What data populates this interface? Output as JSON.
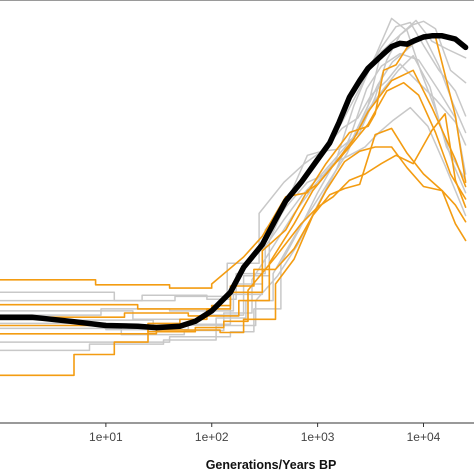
{
  "chart_data": {
    "type": "line",
    "title": "",
    "xlabel": "Generations/Years BP",
    "ylabel": "",
    "x_scale": "log",
    "xlim": [
      1,
      30000
    ],
    "ylim": [
      0,
      100
    ],
    "x_ticks": [
      {
        "value": 10,
        "label": "1e+01"
      },
      {
        "value": 100,
        "label": "1e+02"
      },
      {
        "value": 1000,
        "label": "1e+03"
      },
      {
        "value": 10000,
        "label": "1e+04"
      }
    ],
    "grid": false,
    "legend": "none",
    "colors": {
      "background": "#ffffff",
      "mean": "#000000",
      "highlight": "#f39c12",
      "replicate": "#c8c8c8",
      "axis": "#333333"
    },
    "series": [
      {
        "group": "mean",
        "x": [
          1,
          2,
          5,
          10,
          20,
          30,
          50,
          70,
          100,
          150,
          200,
          300,
          400,
          500,
          700,
          1000,
          1300,
          1600,
          2000,
          2500,
          3000,
          4000,
          5000,
          6000,
          7000,
          8000,
          10000,
          12000,
          15000,
          20000,
          25000
        ],
        "y": [
          25.5,
          25.5,
          24.4,
          23.5,
          23.3,
          23.0,
          23.3,
          24.5,
          27.0,
          31.5,
          37.5,
          43.0,
          49.0,
          53.5,
          58.0,
          63.5,
          67.5,
          72.5,
          78.5,
          82.5,
          85.5,
          88.5,
          90.7,
          91.5,
          91.3,
          92.0,
          93.0,
          93.3,
          93.3,
          92.5,
          90.5
        ]
      },
      {
        "group": "highlight",
        "x": [
          1,
          8,
          8,
          40,
          40,
          100,
          100,
          200,
          300,
          500,
          800,
          1200,
          2000,
          3000,
          3500,
          4200,
          5500,
          7000,
          10000,
          13000,
          20000,
          25000
        ],
        "y": [
          34.5,
          34.5,
          33.3,
          33.3,
          32.5,
          32.5,
          33.5,
          40.0,
          45.0,
          54.5,
          55.5,
          62.5,
          70.0,
          71.5,
          74.5,
          85.0,
          86.3,
          90.5,
          93.3,
          93.0,
          74.0,
          58.0
        ]
      },
      {
        "group": "highlight",
        "x": [
          1,
          20,
          20,
          100,
          100,
          150,
          150,
          300,
          300,
          500,
          800,
          1000,
          1500,
          2200,
          3000,
          5000,
          8000,
          12000,
          20000,
          25000
        ],
        "y": [
          28.5,
          28.5,
          27.5,
          27.5,
          28.3,
          28.3,
          31.5,
          31.5,
          41.5,
          46.5,
          56.0,
          57.5,
          63.0,
          68.5,
          75.0,
          82.5,
          85.0,
          76.0,
          63.5,
          57.0
        ]
      },
      {
        "group": "highlight",
        "x": [
          1,
          30,
          30,
          120,
          120,
          200,
          200,
          400,
          400,
          600,
          900,
          1200,
          1800,
          2500,
          3500,
          5000,
          7000,
          10000,
          15000,
          20000,
          25000
        ],
        "y": [
          21.5,
          21.5,
          22.4,
          22.4,
          21.8,
          21.8,
          25.0,
          25.0,
          33.5,
          39.5,
          50.0,
          56.0,
          63.0,
          65.5,
          66.5,
          66.5,
          61.5,
          57.0,
          56.0,
          52.5,
          48.5
        ]
      },
      {
        "group": "highlight",
        "x": [
          1,
          5,
          5,
          12,
          12,
          25,
          25,
          50,
          50,
          90,
          90,
          150,
          150,
          250,
          250,
          400,
          600,
          900,
          1300,
          1800,
          2500,
          3500,
          5000,
          7000,
          10000,
          15000,
          20000,
          25000
        ],
        "y": [
          11.5,
          11.5,
          16.5,
          16.5,
          19.5,
          19.5,
          24.0,
          24.0,
          25.0,
          25.0,
          27.5,
          27.5,
          33.0,
          33.0,
          37.0,
          37.0,
          42.0,
          50.0,
          55.0,
          56.5,
          57.5,
          69.5,
          71.0,
          65.0,
          60.0,
          56.0,
          48.0,
          44.0
        ]
      },
      {
        "group": "highlight",
        "x": [
          1,
          25,
          25,
          70,
          70,
          130,
          130,
          220,
          220,
          400,
          700,
          1000,
          1400,
          2000,
          2800,
          4000,
          5500,
          8000,
          12000,
          16000,
          20000,
          25000
        ],
        "y": [
          23.5,
          23.5,
          22.0,
          22.0,
          23.0,
          23.0,
          24.5,
          24.5,
          32.0,
          40.0,
          48.0,
          52.0,
          54.5,
          58.5,
          60.0,
          62.5,
          64.5,
          62.5,
          70.5,
          74.5,
          58.5,
          52.0
        ]
      },
      {
        "group": "highlight",
        "x": [
          1,
          15,
          15,
          60,
          60,
          180,
          180,
          350,
          350,
          600,
          900,
          1300,
          2000,
          3000,
          4500,
          6500,
          9000,
          13000,
          18000,
          25000
        ],
        "y": [
          25.5,
          25.5,
          26.5,
          26.5,
          25.8,
          25.8,
          29.5,
          29.5,
          38.5,
          48.0,
          56.0,
          61.0,
          66.5,
          72.0,
          80.0,
          82.0,
          79.0,
          70.0,
          60.0,
          54.0
        ]
      },
      {
        "group": "replicate",
        "x": [
          1,
          10,
          10,
          60,
          60,
          150,
          150,
          300,
          300,
          500,
          800,
          1200,
          2000,
          3000,
          4000,
          6000,
          8000,
          10000,
          13000,
          18000,
          25000
        ],
        "y": [
          24.0,
          24.0,
          22.5,
          22.5,
          23.8,
          23.8,
          31.0,
          31.0,
          43.0,
          52.0,
          58.0,
          60.0,
          67.0,
          76.5,
          89.5,
          93.5,
          96.0,
          96.8,
          95.0,
          85.0,
          82.0
        ]
      },
      {
        "group": "replicate",
        "x": [
          1,
          18,
          18,
          80,
          80,
          200,
          200,
          350,
          350,
          550,
          800,
          1100,
          1600,
          2500,
          3500,
          4500,
          6000,
          8500,
          12000,
          17000,
          25000
        ],
        "y": [
          27.0,
          27.0,
          25.0,
          25.0,
          26.0,
          26.0,
          35.5,
          35.5,
          44.0,
          55.0,
          64.5,
          65.5,
          66.0,
          70.0,
          78.5,
          87.5,
          93.5,
          97.0,
          92.0,
          90.0,
          88.0
        ]
      },
      {
        "group": "replicate",
        "x": [
          1,
          40,
          40,
          150,
          150,
          250,
          250,
          450,
          450,
          700,
          1000,
          1500,
          2200,
          3000,
          4000,
          5500,
          7500,
          10000,
          14000,
          20000,
          25000
        ],
        "y": [
          19.5,
          19.5,
          20.8,
          20.8,
          22.0,
          22.0,
          27.5,
          27.5,
          38.5,
          47.5,
          55.5,
          63.5,
          76.5,
          84.5,
          90.5,
          95.5,
          96.5,
          91.0,
          85.0,
          80.0,
          74.0
        ]
      },
      {
        "group": "replicate",
        "x": [
          1,
          12,
          12,
          45,
          45,
          140,
          140,
          280,
          280,
          480,
          750,
          1100,
          1700,
          2400,
          3200,
          4500,
          6000,
          9000,
          13000,
          20000,
          25000
        ],
        "y": [
          31.5,
          31.5,
          29.5,
          29.5,
          30.5,
          30.5,
          38.5,
          38.5,
          50.5,
          58.0,
          62.5,
          65.5,
          71.0,
          73.5,
          79.0,
          82.5,
          86.5,
          82.0,
          78.0,
          72.5,
          67.0
        ]
      },
      {
        "group": "replicate",
        "x": [
          1,
          7,
          7,
          35,
          35,
          110,
          110,
          260,
          260,
          420,
          650,
          1000,
          1500,
          2100,
          2900,
          4000,
          6000,
          9000,
          14000,
          20000,
          25000
        ],
        "y": [
          17.5,
          17.5,
          19.0,
          19.0,
          20.0,
          20.0,
          23.5,
          23.5,
          29.5,
          35.5,
          43.0,
          52.5,
          61.0,
          70.0,
          80.5,
          86.0,
          89.0,
          87.5,
          80.0,
          73.5,
          60.0
        ]
      },
      {
        "group": "replicate",
        "x": [
          1,
          22,
          22,
          90,
          90,
          170,
          170,
          320,
          320,
          520,
          820,
          1150,
          1700,
          2600,
          3600,
          5000,
          7000,
          9500,
          13000,
          19000,
          25000
        ],
        "y": [
          29.5,
          29.5,
          30.8,
          30.8,
          29.8,
          29.8,
          36.0,
          36.0,
          46.5,
          53.5,
          60.0,
          65.0,
          72.5,
          81.5,
          89.0,
          97.5,
          94.5,
          84.5,
          75.5,
          62.5,
          55.5
        ]
      },
      {
        "group": "replicate",
        "x": [
          1,
          14,
          14,
          55,
          55,
          130,
          130,
          240,
          240,
          380,
          600,
          950,
          1400,
          2000,
          2800,
          3800,
          5200,
          7500,
          11000,
          16000,
          25000
        ],
        "y": [
          22.8,
          22.8,
          21.3,
          21.3,
          22.3,
          22.3,
          26.5,
          26.5,
          34.5,
          42.5,
          50.5,
          57.5,
          62.5,
          64.5,
          66.5,
          70.0,
          73.0,
          76.0,
          71.5,
          62.0,
          50.0
        ]
      },
      {
        "group": "replicate",
        "x": [
          1,
          9,
          9,
          40,
          40,
          160,
          160,
          300,
          300,
          480,
          720,
          1050,
          1500,
          2200,
          3000,
          4200,
          5800,
          8000,
          11500,
          16500,
          25000
        ],
        "y": [
          26.0,
          26.0,
          27.5,
          27.5,
          27.0,
          27.0,
          33.5,
          33.5,
          41.5,
          49.0,
          55.0,
          59.5,
          64.0,
          69.0,
          75.5,
          80.5,
          85.0,
          88.5,
          81.0,
          66.5,
          58.5
        ]
      },
      {
        "group": "replicate",
        "x": [
          1,
          28,
          28,
          110,
          110,
          210,
          210,
          380,
          380,
          620,
          950,
          1300,
          1900,
          2700,
          3700,
          5100,
          7000,
          10000,
          14000,
          19000,
          25000
        ],
        "y": [
          24.8,
          24.8,
          23.6,
          23.6,
          25.3,
          25.3,
          29.5,
          29.5,
          36.0,
          45.5,
          53.0,
          58.5,
          65.0,
          74.0,
          81.5,
          87.0,
          90.0,
          93.5,
          86.0,
          77.0,
          70.0
        ]
      }
    ]
  }
}
